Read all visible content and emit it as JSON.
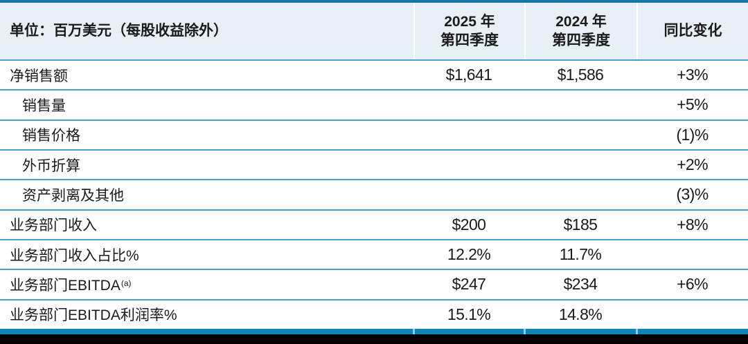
{
  "colors": {
    "top_border": "#1478aa",
    "header_bg": "#e9eff6",
    "header_divider": "#ffffff",
    "separator": "#45a2d4",
    "text": "#1a1a1a",
    "bottom_bar": "#0e84ba",
    "bottom_bar_tick": "#8ecbe8",
    "page_bg": "#ffffff",
    "footer_strip": "#000000"
  },
  "table": {
    "unit_label": "单位：百万美元（每股收益除外）",
    "columns": [
      {
        "line1": "2025 年",
        "line2": "第四季度"
      },
      {
        "line1": "2024 年",
        "line2": "第四季度"
      },
      {
        "label": "同比变化"
      }
    ],
    "rows": [
      {
        "label": "净销售额",
        "indent": false,
        "q4_2025": "$1,641",
        "q4_2024": "$1,586",
        "yoy": "+3%"
      },
      {
        "label": "销售量",
        "indent": true,
        "q4_2025": "",
        "q4_2024": "",
        "yoy": "+5%"
      },
      {
        "label": "销售价格",
        "indent": true,
        "q4_2025": "",
        "q4_2024": "",
        "yoy": "(1)%"
      },
      {
        "label": "外币折算",
        "indent": true,
        "q4_2025": "",
        "q4_2024": "",
        "yoy": "+2%"
      },
      {
        "label": "资产剥离及其他",
        "indent": true,
        "q4_2025": "",
        "q4_2024": "",
        "yoy": "(3)%"
      },
      {
        "label": "业务部门收入",
        "indent": false,
        "q4_2025": "$200",
        "q4_2024": "$185",
        "yoy": "+8%"
      },
      {
        "label": "业务部门收入占比%",
        "indent": false,
        "q4_2025": "12.2%",
        "q4_2024": "11.7%",
        "yoy": ""
      },
      {
        "label": "业务部门EBITDA",
        "superscript": "(a)",
        "indent": false,
        "q4_2025": "$247",
        "q4_2024": "$234",
        "yoy": "+6%"
      },
      {
        "label": "业务部门EBITDA利润率%",
        "indent": false,
        "q4_2025": "15.1%",
        "q4_2024": "14.8%",
        "yoy": ""
      }
    ]
  }
}
